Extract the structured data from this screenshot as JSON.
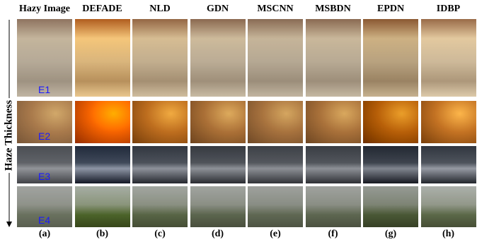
{
  "side_label": "Haze Thickness",
  "columns": [
    {
      "header": "Hazy Image",
      "label": "(a)"
    },
    {
      "header": "DEFADE",
      "label": "(b)"
    },
    {
      "header": "NLD",
      "label": "(c)"
    },
    {
      "header": "GDN",
      "label": "(d)"
    },
    {
      "header": "MSCNN",
      "label": "(e)"
    },
    {
      "header": "MSBDN",
      "label": "(f)"
    },
    {
      "header": "EPDN",
      "label": "(g)"
    },
    {
      "header": "IDBP",
      "label": "(h)"
    }
  ],
  "rows": [
    {
      "label": "E1"
    },
    {
      "label": "E2"
    },
    {
      "label": "E3"
    },
    {
      "label": "E4"
    }
  ]
}
